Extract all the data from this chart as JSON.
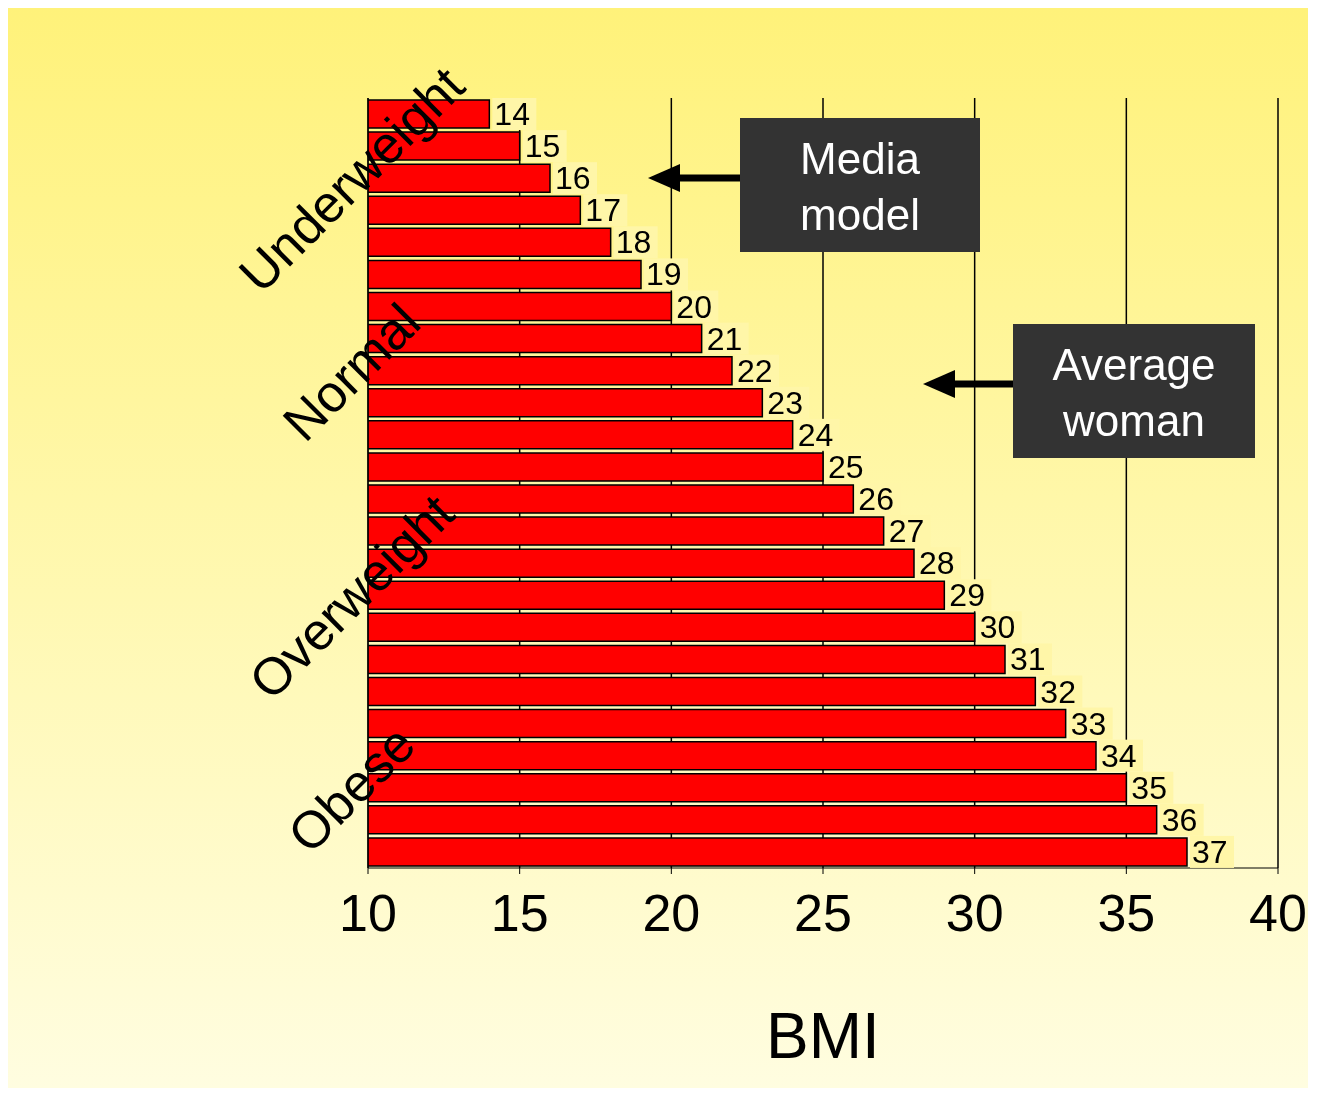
{
  "chart_data": {
    "type": "bar",
    "orientation": "horizontal",
    "xlabel": "BMI",
    "categories": [
      null,
      null,
      "Underweight",
      null,
      null,
      null,
      null,
      null,
      "Normal",
      null,
      null,
      null,
      null,
      null,
      null,
      "Overweight",
      null,
      null,
      null,
      null,
      null,
      "Obese",
      null,
      null
    ],
    "values": [
      14,
      15,
      16,
      17,
      18,
      19,
      20,
      21,
      22,
      23,
      24,
      25,
      26,
      27,
      28,
      29,
      30,
      31,
      32,
      33,
      34,
      35,
      36,
      37
    ],
    "color": "#ff0000",
    "data_labels": true,
    "xlim": [
      10,
      40
    ],
    "xticks": [
      10,
      15,
      20,
      25,
      30,
      35,
      40
    ],
    "grid": "x",
    "annotations": [
      "Media model",
      "Average woman"
    ]
  }
}
